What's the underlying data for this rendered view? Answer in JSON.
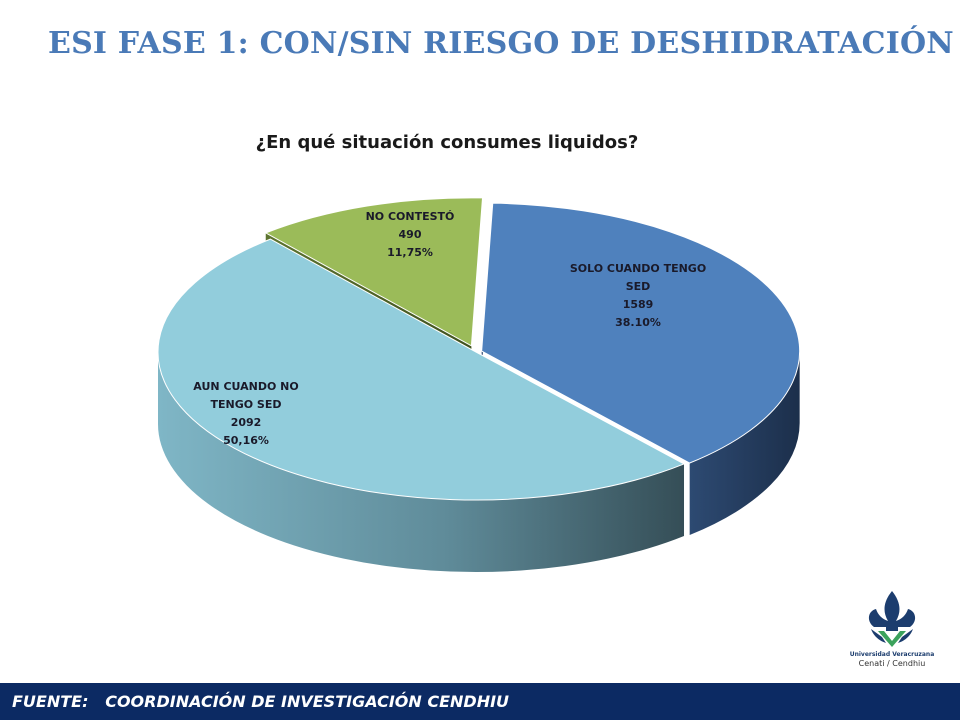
{
  "slide": {
    "title": "ESI  FASE  1: CON/SIN RIESGO DE DESHIDRATACIÓN"
  },
  "chart_data": {
    "type": "pie",
    "title": "¿En qué situación  consumes liquidos?",
    "slices": [
      {
        "label_lines": [
          "SOLO CUANDO TENGO",
          "SED"
        ],
        "value": 1589,
        "value_label": "1589",
        "percent_label": "38.10%",
        "color": "#4f81bd"
      },
      {
        "label_lines": [
          "AUN CUANDO NO",
          "TENGO SED"
        ],
        "value": 2092,
        "value_label": "2092",
        "percent_label": "50,16%",
        "color": "#92cddc"
      },
      {
        "label_lines": [
          "NO CONTESTÓ"
        ],
        "value": 490,
        "value_label": "490",
        "percent_label": "11,75%",
        "color": "#9bbb59"
      }
    ],
    "legend": "none",
    "style": "3d-exploded"
  },
  "logo": {
    "name": "Universidad Veracruzana",
    "caption": "Cenati / Cendhiu"
  },
  "footer": {
    "text": "FUENTE:   COORDINACIÓN DE INVESTIGACIÓN CENDHIU"
  }
}
